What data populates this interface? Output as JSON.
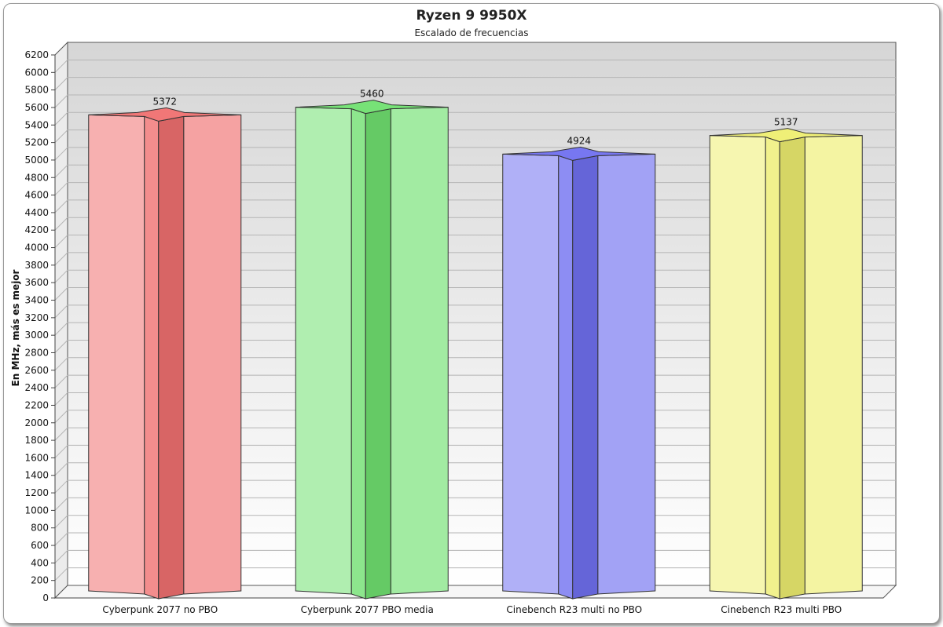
{
  "chart_data": {
    "type": "bar",
    "title": "Ryzen 9 9950X",
    "subtitle": "Escalado de frecuencias",
    "xlabel": "",
    "ylabel": "En MHz, más es mejor",
    "ylim": [
      0,
      6200
    ],
    "y_ticks": [
      0,
      200,
      400,
      600,
      800,
      1000,
      1200,
      1400,
      1600,
      1800,
      2000,
      2200,
      2400,
      2600,
      2800,
      3000,
      3200,
      3400,
      3600,
      3800,
      4000,
      4200,
      4400,
      4600,
      4800,
      5000,
      5200,
      5400,
      5600,
      5800,
      6000,
      6200
    ],
    "grid": true,
    "categories": [
      "Cyberpunk 2077 no PBO",
      "Cyberpunk 2077 PBO media",
      "Cinebench R23 multi no PBO",
      "Cinebench R23 multi PBO"
    ],
    "values": [
      5372,
      5460,
      4924,
      5137
    ],
    "data_labels": [
      "5372",
      "5460",
      "4924",
      "5137"
    ],
    "colors": [
      "#f07070",
      "#70e070",
      "#7070f0",
      "#eeee70"
    ],
    "legend": "none"
  }
}
